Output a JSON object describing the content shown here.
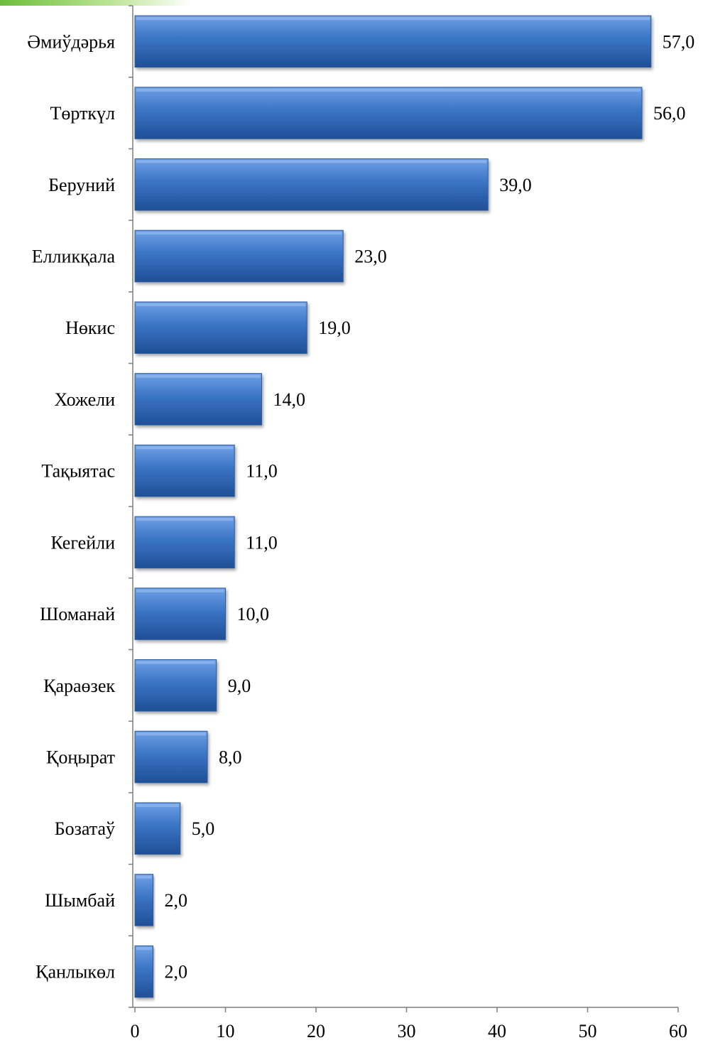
{
  "chart_data": {
    "type": "bar",
    "orientation": "horizontal",
    "categories": [
      "Әмиўдәрья",
      "Төрткүл",
      "Беруний",
      "Елликқала",
      "Нөкис",
      "Хожели",
      "Тақыятас",
      "Кегейли",
      "Шоманай",
      "Қараөзек",
      "Қоңырат",
      "Бозатаў",
      "Шымбай",
      "Қанлыкөл"
    ],
    "values": [
      57,
      56,
      39,
      23,
      19,
      14,
      11,
      11,
      10,
      9,
      8,
      5,
      2,
      2
    ],
    "value_labels": [
      "57,0",
      "56,0",
      "39,0",
      "23,0",
      "19,0",
      "14,0",
      "11,0",
      "11,0",
      "10,0",
      "9,0",
      "8,0",
      "5,0",
      "2,0",
      "2,0"
    ],
    "xlim": [
      0,
      60
    ],
    "xticks": [
      0,
      10,
      20,
      30,
      40,
      50,
      60
    ],
    "xtick_labels": [
      "0",
      "10",
      "20",
      "30",
      "40",
      "50",
      "60"
    ],
    "grid": false,
    "legend": "none",
    "bar_color": "#3a74c4",
    "bar_color_light": "#6fa0e6",
    "bar_color_dark": "#1f4f96"
  }
}
